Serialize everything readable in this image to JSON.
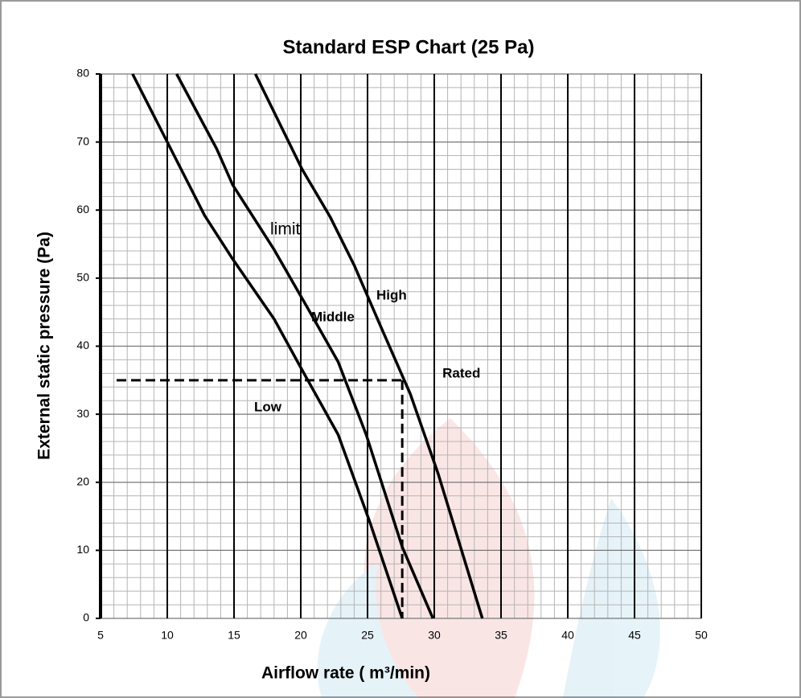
{
  "chart_data": {
    "type": "line",
    "title": "Standard ESP Chart (25 Pa)",
    "x_label": "Airflow rate ( m³/min)",
    "y_label": "External static pressure (Pa)",
    "xlim": [
      5,
      50
    ],
    "ylim": [
      0,
      80
    ],
    "xticks": [
      5,
      10,
      15,
      20,
      25,
      30,
      35,
      40,
      45,
      50
    ],
    "yticks": [
      0,
      10,
      20,
      30,
      40,
      50,
      60,
      70,
      80
    ],
    "grid": true,
    "series": [
      {
        "name": "Low",
        "color": "#000000",
        "x": [
          7.4,
          10,
          12.8,
          14.9,
          18,
          20.1,
          22.8,
          25.2,
          27.6
        ],
        "values": [
          80,
          70,
          59.2,
          52.8,
          44,
          36.5,
          27,
          14,
          0
        ]
      },
      {
        "name": "Middle",
        "color": "#000000",
        "x": [
          10.7,
          13.7,
          14.9,
          18,
          20.4,
          22.8,
          24.9,
          27.6,
          29.9
        ],
        "values": [
          80,
          69,
          63.7,
          54.2,
          46,
          37.7,
          27,
          10.5,
          0
        ]
      },
      {
        "name": "High",
        "color": "#000000",
        "x": [
          16.6,
          20.1,
          22.2,
          24,
          26.1,
          28.2,
          30.3,
          33.6
        ],
        "values": [
          80,
          66,
          59,
          51.9,
          42.4,
          33,
          21.2,
          0
        ]
      }
    ],
    "rated": {
      "label": "Rated",
      "x": 27.6,
      "y": 35
    },
    "annotation": "limit"
  }
}
